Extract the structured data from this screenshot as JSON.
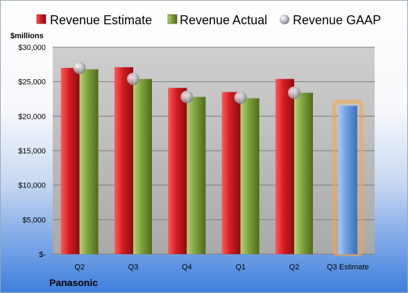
{
  "company": "Panasonic",
  "unit_label": "$millions",
  "chart_data": {
    "type": "bar",
    "categories": [
      "Q2",
      "Q3",
      "Q4",
      "Q1",
      "Q2",
      "Q3 Estimate"
    ],
    "series": [
      {
        "name": "Revenue Estimate",
        "color": "#c0161c",
        "values": [
          27000,
          27100,
          24100,
          23500,
          25400,
          null
        ]
      },
      {
        "name": "Revenue Actual",
        "color": "#6f8f2e",
        "values": [
          26800,
          25400,
          22800,
          22600,
          23400,
          null
        ]
      },
      {
        "name": "Revenue GAAP",
        "color": "#a8a8b0",
        "values": [
          27000,
          25400,
          22800,
          22700,
          23400,
          null
        ]
      },
      {
        "name": "",
        "color": "#5b8fd6",
        "values": [
          null,
          null,
          null,
          null,
          null,
          21500
        ]
      }
    ],
    "ylim": [
      0,
      30000
    ],
    "yticks": [
      0,
      5000,
      10000,
      15000,
      20000,
      25000,
      30000
    ],
    "ytick_labels": [
      "$-",
      "$5,000",
      "$10,000",
      "$15,000",
      "$20,000",
      "$25,000",
      "$30,000"
    ],
    "grid": true,
    "legend": "top",
    "highlight_category": "Q3 Estimate",
    "highlight_color": "#f5a64a"
  }
}
